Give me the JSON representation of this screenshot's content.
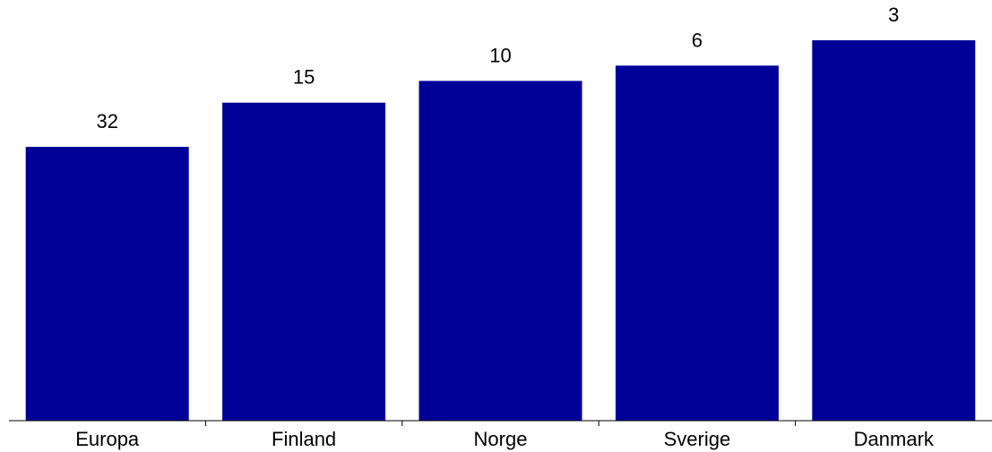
{
  "chart_data": {
    "type": "bar",
    "categories": [
      "Europa",
      "Finland",
      "Norge",
      "Sverige",
      "Danmark"
    ],
    "values": [
      303,
      352,
      376,
      393,
      421
    ],
    "data_labels": [
      "32",
      "15",
      "10",
      "6",
      "3"
    ],
    "title": "",
    "xlabel": "",
    "ylabel": "",
    "ylim": [
      0,
      421
    ],
    "grid": false,
    "legend": "none",
    "colors": {
      "bar": "#000099",
      "axis": "#000000",
      "label": "#000000"
    }
  }
}
